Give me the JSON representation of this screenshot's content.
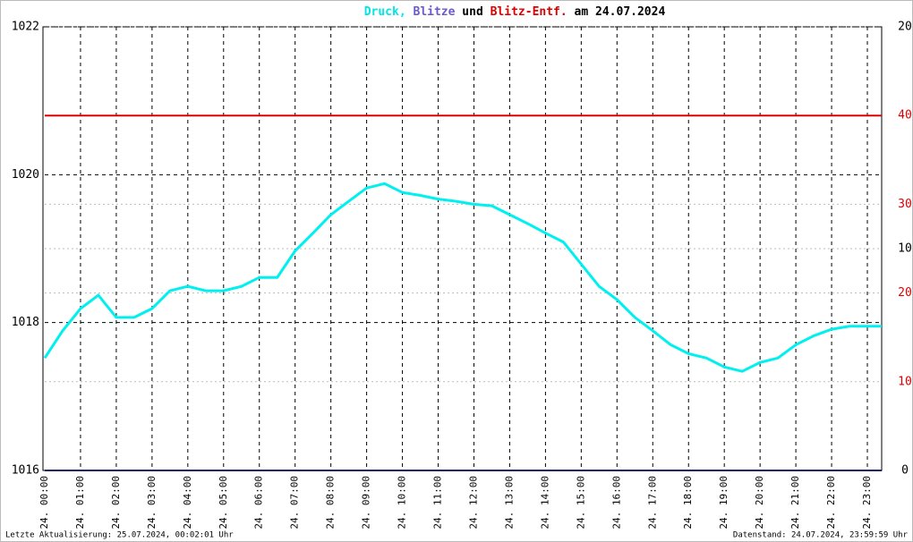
{
  "chart_data": {
    "type": "line",
    "title_parts": [
      {
        "text": "Druck,",
        "color": "#00e5e5"
      },
      {
        "text": "Blitze",
        "color": "#6a5acd"
      },
      {
        "text": "und",
        "color": "#000000"
      },
      {
        "text": "Blitz-Entf.",
        "color": "#dd0000"
      },
      {
        "text": "am 24.07.2024",
        "color": "#000000"
      }
    ],
    "footer_left": "Letzte Aktualisierung: 25.07.2024, 00:02:01 Uhr",
    "footer_right": "Datenstand: 24.07.2024, 23:59:59 Uhr",
    "x": [
      0,
      0.5,
      1,
      1.5,
      2,
      2.5,
      3,
      3.5,
      4,
      4.5,
      5,
      5.5,
      6,
      6.5,
      7,
      7.5,
      8,
      8.5,
      9,
      9.5,
      10,
      10.5,
      11,
      11.5,
      12,
      12.5,
      13,
      13.5,
      14,
      14.5,
      15,
      15.5,
      16,
      16.5,
      17,
      17.5,
      18,
      18.5,
      19,
      19.5,
      20,
      20.5,
      21,
      21.5,
      22,
      22.5,
      23,
      23.4
    ],
    "xlim": [
      0,
      23.4
    ],
    "xticks": [
      {
        "value": 0,
        "label": "24. 00:00"
      },
      {
        "value": 1,
        "label": "24. 01:00"
      },
      {
        "value": 2,
        "label": "24. 02:00"
      },
      {
        "value": 3,
        "label": "24. 03:00"
      },
      {
        "value": 4,
        "label": "24. 04:00"
      },
      {
        "value": 5,
        "label": "24. 05:00"
      },
      {
        "value": 6,
        "label": "24. 06:00"
      },
      {
        "value": 7,
        "label": "24. 07:00"
      },
      {
        "value": 8,
        "label": "24. 08:00"
      },
      {
        "value": 9,
        "label": "24. 09:00"
      },
      {
        "value": 10,
        "label": "24. 10:00"
      },
      {
        "value": 11,
        "label": "24. 11:00"
      },
      {
        "value": 12,
        "label": "24. 12:00"
      },
      {
        "value": 13,
        "label": "24. 13:00"
      },
      {
        "value": 14,
        "label": "24. 14:00"
      },
      {
        "value": 15,
        "label": "24. 15:00"
      },
      {
        "value": 16,
        "label": "24. 16:00"
      },
      {
        "value": 17,
        "label": "24. 17:00"
      },
      {
        "value": 18,
        "label": "24. 18:00"
      },
      {
        "value": 19,
        "label": "24. 19:00"
      },
      {
        "value": 20,
        "label": "24. 20:00"
      },
      {
        "value": 21,
        "label": "24. 21:00"
      },
      {
        "value": 22,
        "label": "24. 22:00"
      },
      {
        "value": 23,
        "label": "24. 23:00"
      }
    ],
    "ylim": [
      1016,
      1022
    ],
    "yticks": [
      1016,
      1018,
      1020,
      1022
    ],
    "y2lim": [
      0,
      20
    ],
    "y2ticks": [
      0,
      10,
      20
    ],
    "y2color": "#000000",
    "y3lim": [
      0,
      50
    ],
    "y3ticks": [
      10,
      20,
      30,
      40
    ],
    "y3color": "#dd0000",
    "grid": true,
    "series": [
      {
        "name": "Druck",
        "color": "#00f0f0",
        "values": [
          1017.52,
          1017.89,
          1018.19,
          1018.37,
          1018.07,
          1018.07,
          1018.19,
          1018.43,
          1018.49,
          1018.43,
          1018.43,
          1018.49,
          1018.61,
          1018.61,
          1018.97,
          1019.21,
          1019.46,
          1019.64,
          1019.82,
          1019.88,
          1019.76,
          1019.72,
          1019.67,
          1019.64,
          1019.6,
          1019.58,
          1019.46,
          1019.34,
          1019.21,
          1019.09,
          1018.79,
          1018.49,
          1018.31,
          1018.07,
          1017.89,
          1017.7,
          1017.58,
          1017.52,
          1017.4,
          1017.34,
          1017.46,
          1017.52,
          1017.7,
          1017.82,
          1017.91,
          1017.95,
          1017.95,
          1017.95
        ]
      },
      {
        "name": "Blitze",
        "color": "#1a1a6e",
        "axis": "y2",
        "values": [
          0,
          0,
          0,
          0,
          0,
          0,
          0,
          0,
          0,
          0,
          0,
          0,
          0,
          0,
          0,
          0,
          0,
          0,
          0,
          0,
          0,
          0,
          0,
          0,
          0,
          0,
          0,
          0,
          0,
          0,
          0,
          0,
          0,
          0,
          0,
          0,
          0,
          0,
          0,
          0,
          0,
          0,
          0,
          0,
          0,
          0,
          0,
          0
        ]
      },
      {
        "name": "Blitz-Entf.",
        "color": "#dd0000",
        "axis": "y3",
        "values": [
          40,
          40,
          40,
          40,
          40,
          40,
          40,
          40,
          40,
          40,
          40,
          40,
          40,
          40,
          40,
          40,
          40,
          40,
          40,
          40,
          40,
          40,
          40,
          40,
          40,
          40,
          40,
          40,
          40,
          40,
          40,
          40,
          40,
          40,
          40,
          40,
          40,
          40,
          40,
          40,
          40,
          40,
          40,
          40,
          40,
          40,
          40,
          40
        ]
      }
    ]
  }
}
